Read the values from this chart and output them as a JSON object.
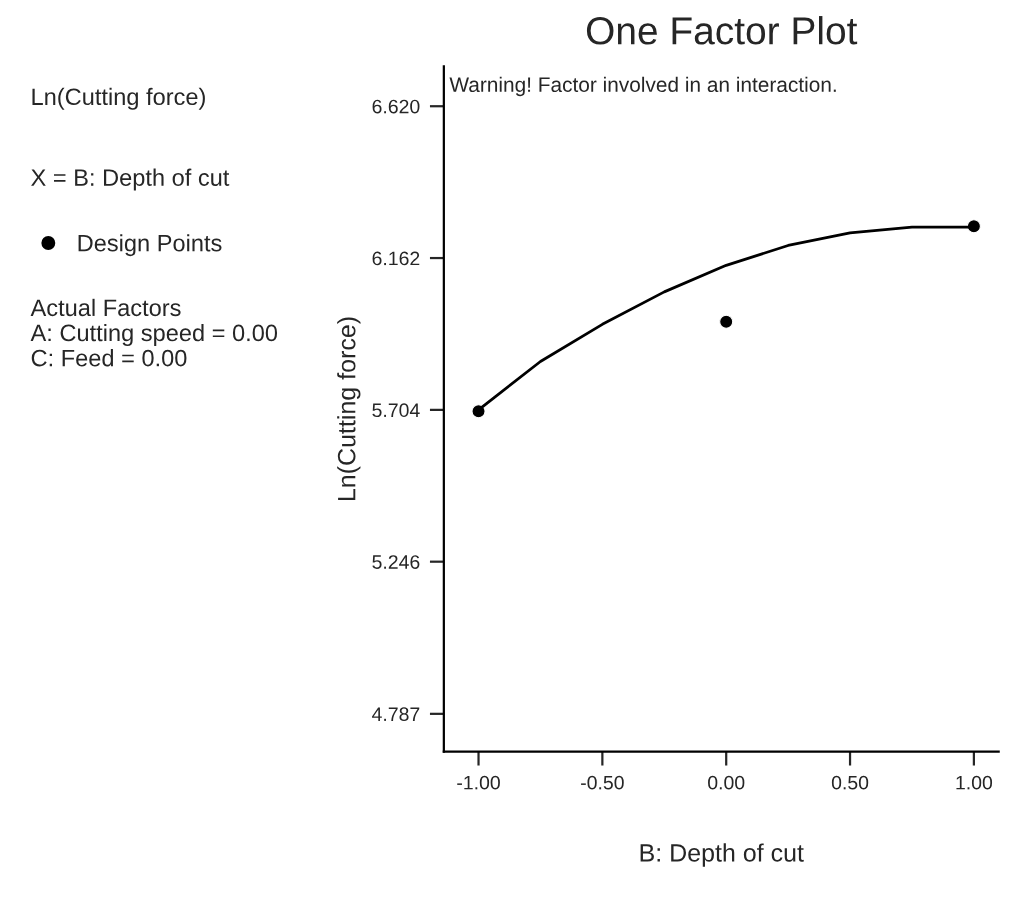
{
  "chart_data": {
    "type": "line",
    "title": "One Factor Plot",
    "xlabel": "B: Depth of cut",
    "ylabel": "Ln(Cutting force)",
    "annotations": [
      "Ln(Cutting force)",
      "X = B: Depth of cut",
      "Actual Factors",
      "A: Cutting speed = 0.00",
      "C: Feed = 0.00",
      "Warning! Factor involved in an interaction."
    ],
    "series": [
      {
        "color": "#000000",
        "x": [
          -1,
          -0.75,
          -0.5,
          -0.25,
          0,
          0.25,
          0.5,
          0.75,
          1
        ],
        "values": [
          5.704,
          5.85,
          5.962,
          6.06,
          6.14,
          6.2,
          6.238,
          6.255,
          6.255
        ],
        "marker": "none",
        "line_style": "solid"
      },
      {
        "type": "scatter",
        "name": "Design Points",
        "color": "#000000",
        "x": [
          -1,
          0,
          1
        ],
        "values": [
          5.7,
          5.97,
          6.258
        ],
        "marker": "circle"
      }
    ],
    "xlim": [
      -1.14,
      1.1
    ],
    "ylim": [
      4.673,
      6.74
    ],
    "xticks": [
      {
        "value": -1,
        "label": "-1.00"
      },
      {
        "value": -0.5,
        "label": "-0.50"
      },
      {
        "value": 0,
        "label": "0.00"
      },
      {
        "value": 0.5,
        "label": "0.50"
      },
      {
        "value": 1,
        "label": "1.00"
      }
    ],
    "yticks": [
      {
        "value": 4.787,
        "label": "4.787"
      },
      {
        "value": 5.246,
        "label": "5.246"
      },
      {
        "value": 5.704,
        "label": "5.704"
      },
      {
        "value": 6.162,
        "label": "6.162"
      },
      {
        "value": 6.62,
        "label": "6.620"
      }
    ],
    "grid": false,
    "legend": "left"
  }
}
